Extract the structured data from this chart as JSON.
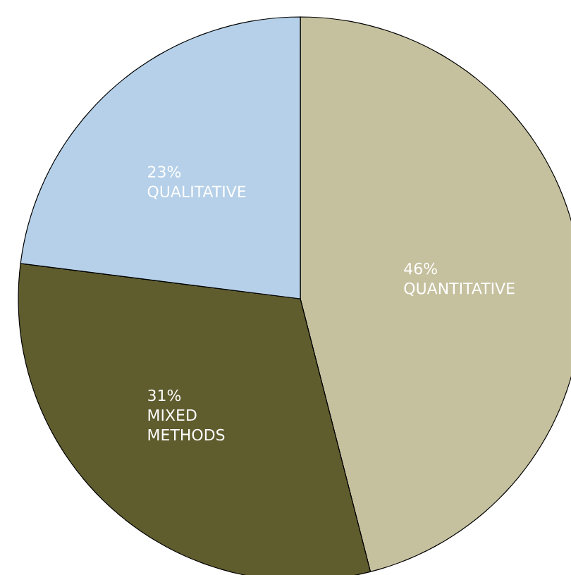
{
  "chart_data": {
    "type": "pie",
    "categories": [
      "QUANTITATIVE",
      "MIXED METHODS",
      "QUALITATIVE"
    ],
    "values": [
      46,
      31,
      23
    ],
    "value_labels": [
      "46%",
      "31%",
      "23%"
    ],
    "colors": [
      "#c5c09e",
      "#5f5c2e",
      "#b5d0e8"
    ]
  }
}
